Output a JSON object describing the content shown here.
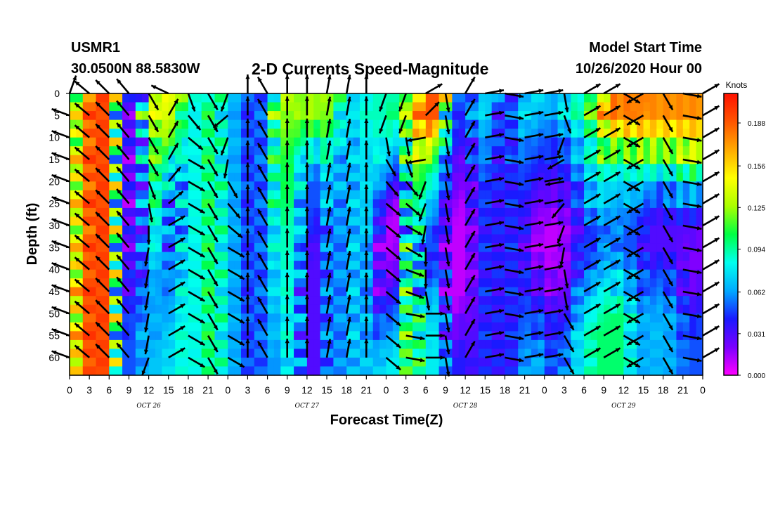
{
  "header": {
    "station": "USMR1",
    "coords": "30.0500N 88.5830W",
    "title": "2-D Currents Speed-Magnitude",
    "model_start_label": "Model Start Time",
    "model_start_value": "10/26/2020 Hour 00"
  },
  "colorbar": {
    "title": "Knots",
    "ticks": [
      "0.188",
      "0.156",
      "0.125",
      "0.094",
      "0.062",
      "0.031",
      "0.000"
    ]
  },
  "chart_data": {
    "type": "heatmap",
    "title": "2-D Currents Speed-Magnitude",
    "xlabel": "Forecast Time(Z)",
    "ylabel": "Depth (ft)",
    "x_tick_labels": [
      "0",
      "3",
      "6",
      "9",
      "12",
      "15",
      "18",
      "21",
      "0",
      "3",
      "6",
      "9",
      "12",
      "15",
      "18",
      "21",
      "0",
      "3",
      "6",
      "9",
      "12",
      "15",
      "18",
      "21",
      "0",
      "3",
      "6",
      "9",
      "12",
      "15",
      "18",
      "21",
      "0"
    ],
    "x_range_hours": [
      0,
      96
    ],
    "day_labels": [
      "OCT 26",
      "OCT 27",
      "OCT 28",
      "OCT 29"
    ],
    "y_tick_labels": [
      "0",
      "5",
      "10",
      "15",
      "20",
      "25",
      "30",
      "35",
      "40",
      "45",
      "50",
      "55",
      "60"
    ],
    "ylim": [
      0,
      64
    ],
    "y_inverted": true,
    "color_scale_units": "Knots",
    "color_range": [
      0.0,
      0.21
    ],
    "colormap": [
      "#ff00ff",
      "#7a00ff",
      "#1a1aff",
      "#00aaff",
      "#00ffee",
      "#00ff44",
      "#aaff00",
      "#ffff00",
      "#ffaa00",
      "#ff5500",
      "#ff1100"
    ],
    "time_hours": [
      0,
      2,
      4,
      6,
      8,
      10,
      12,
      14,
      16,
      18,
      20,
      22,
      24,
      26,
      28,
      30,
      32,
      34,
      36,
      38,
      40,
      42,
      44,
      46,
      48,
      50,
      52,
      54,
      56,
      58,
      60,
      62,
      64,
      66,
      68,
      70,
      72,
      74,
      76,
      78,
      80,
      82,
      84,
      86,
      88,
      90,
      92,
      94,
      96
    ],
    "depth_ft": [
      0,
      5,
      10,
      15,
      20,
      25,
      30,
      35,
      40,
      45,
      50,
      55,
      60,
      64
    ],
    "speed_knots": [
      [
        0.09,
        0.09,
        0.09,
        0.09,
        0.1,
        0.1,
        0.1,
        0.1,
        0.1,
        0.1,
        0.1,
        0.1,
        0.11,
        0.11
      ],
      [
        0.16,
        0.16,
        0.17,
        0.17,
        0.17,
        0.17,
        0.17,
        0.17,
        0.18,
        0.18,
        0.18,
        0.18,
        0.18,
        0.18
      ],
      [
        0.2,
        0.2,
        0.2,
        0.2,
        0.2,
        0.2,
        0.2,
        0.2,
        0.2,
        0.2,
        0.2,
        0.2,
        0.2,
        0.2
      ],
      [
        0.19,
        0.19,
        0.19,
        0.19,
        0.19,
        0.19,
        0.19,
        0.19,
        0.19,
        0.19,
        0.19,
        0.19,
        0.19,
        0.19
      ],
      [
        0.05,
        0.05,
        0.05,
        0.05,
        0.05,
        0.05,
        0.05,
        0.05,
        0.05,
        0.05,
        0.05,
        0.05,
        0.05,
        0.05
      ],
      [
        0.02,
        0.01,
        0.01,
        0.01,
        0.01,
        0.01,
        0.01,
        0.02,
        0.02,
        0.03,
        0.04,
        0.05,
        0.05,
        0.05
      ],
      [
        0.13,
        0.12,
        0.1,
        0.09,
        0.08,
        0.08,
        0.07,
        0.07,
        0.06,
        0.06,
        0.07,
        0.07,
        0.07,
        0.07
      ],
      [
        0.15,
        0.14,
        0.13,
        0.12,
        0.11,
        0.1,
        0.09,
        0.08,
        0.07,
        0.06,
        0.06,
        0.06,
        0.07,
        0.07
      ],
      [
        0.14,
        0.13,
        0.11,
        0.06,
        0.04,
        0.03,
        0.03,
        0.04,
        0.05,
        0.06,
        0.07,
        0.08,
        0.08,
        0.08
      ],
      [
        0.09,
        0.09,
        0.09,
        0.09,
        0.09,
        0.09,
        0.09,
        0.09,
        0.09,
        0.09,
        0.09,
        0.09,
        0.09,
        0.09
      ],
      [
        0.08,
        0.08,
        0.08,
        0.08,
        0.08,
        0.08,
        0.08,
        0.08,
        0.08,
        0.08,
        0.08,
        0.08,
        0.08,
        0.08
      ],
      [
        0.11,
        0.11,
        0.11,
        0.11,
        0.11,
        0.11,
        0.11,
        0.11,
        0.11,
        0.11,
        0.11,
        0.11,
        0.11,
        0.11
      ],
      [
        0.07,
        0.07,
        0.07,
        0.07,
        0.07,
        0.07,
        0.07,
        0.07,
        0.07,
        0.07,
        0.07,
        0.07,
        0.07,
        0.07
      ],
      [
        0.06,
        0.06,
        0.06,
        0.06,
        0.06,
        0.06,
        0.06,
        0.06,
        0.06,
        0.06,
        0.06,
        0.06,
        0.06,
        0.06
      ],
      [
        0.04,
        0.04,
        0.04,
        0.04,
        0.04,
        0.04,
        0.04,
        0.04,
        0.04,
        0.04,
        0.04,
        0.04,
        0.04,
        0.04
      ],
      [
        0.06,
        0.06,
        0.06,
        0.06,
        0.06,
        0.06,
        0.06,
        0.06,
        0.06,
        0.06,
        0.06,
        0.06,
        0.06,
        0.06
      ],
      [
        0.14,
        0.13,
        0.12,
        0.11,
        0.11,
        0.1,
        0.09,
        0.09,
        0.08,
        0.08,
        0.07,
        0.07,
        0.06,
        0.06
      ],
      [
        0.12,
        0.12,
        0.11,
        0.1,
        0.1,
        0.1,
        0.09,
        0.09,
        0.09,
        0.09,
        0.09,
        0.09,
        0.09,
        0.09
      ],
      [
        0.13,
        0.12,
        0.09,
        0.06,
        0.05,
        0.05,
        0.05,
        0.04,
        0.03,
        0.03,
        0.03,
        0.03,
        0.03,
        0.03
      ],
      [
        0.13,
        0.12,
        0.1,
        0.07,
        0.05,
        0.05,
        0.03,
        0.03,
        0.03,
        0.03,
        0.03,
        0.03,
        0.03,
        0.03
      ],
      [
        0.12,
        0.12,
        0.1,
        0.09,
        0.08,
        0.08,
        0.07,
        0.07,
        0.07,
        0.07,
        0.07,
        0.07,
        0.07,
        0.07
      ],
      [
        0.07,
        0.07,
        0.06,
        0.05,
        0.05,
        0.05,
        0.05,
        0.05,
        0.05,
        0.05,
        0.05,
        0.05,
        0.05,
        0.05
      ],
      [
        0.08,
        0.08,
        0.08,
        0.08,
        0.08,
        0.08,
        0.08,
        0.08,
        0.08,
        0.08,
        0.08,
        0.08,
        0.08,
        0.08
      ],
      [
        0.09,
        0.09,
        0.08,
        0.07,
        0.07,
        0.07,
        0.06,
        0.05,
        0.05,
        0.05,
        0.05,
        0.06,
        0.06,
        0.06
      ],
      [
        0.09,
        0.09,
        0.09,
        0.08,
        0.05,
        0.03,
        0.01,
        0.01,
        0.01,
        0.02,
        0.04,
        0.06,
        0.08,
        0.08
      ],
      [
        0.1,
        0.1,
        0.07,
        0.05,
        0.03,
        0.01,
        0.01,
        0.02,
        0.03,
        0.05,
        0.06,
        0.07,
        0.08,
        0.08
      ],
      [
        0.14,
        0.14,
        0.13,
        0.12,
        0.11,
        0.11,
        0.12,
        0.13,
        0.13,
        0.13,
        0.13,
        0.13,
        0.13,
        0.13
      ],
      [
        0.19,
        0.19,
        0.16,
        0.12,
        0.1,
        0.08,
        0.06,
        0.03,
        0.03,
        0.05,
        0.07,
        0.07,
        0.08,
        0.08
      ],
      [
        0.19,
        0.19,
        0.14,
        0.09,
        0.07,
        0.06,
        0.05,
        0.05,
        0.06,
        0.07,
        0.08,
        0.08,
        0.08,
        0.08
      ],
      [
        0.06,
        0.06,
        0.05,
        0.04,
        0.03,
        0.02,
        0.01,
        0.01,
        0.01,
        0.01,
        0.02,
        0.03,
        0.04,
        0.04
      ],
      [
        0.04,
        0.04,
        0.03,
        0.02,
        0.02,
        0.01,
        0.01,
        0.01,
        0.01,
        0.01,
        0.02,
        0.03,
        0.04,
        0.04
      ],
      [
        0.07,
        0.07,
        0.06,
        0.05,
        0.04,
        0.04,
        0.03,
        0.03,
        0.03,
        0.03,
        0.03,
        0.03,
        0.03,
        0.03
      ],
      [
        0.08,
        0.07,
        0.06,
        0.06,
        0.05,
        0.05,
        0.05,
        0.05,
        0.05,
        0.05,
        0.05,
        0.05,
        0.05,
        0.05
      ],
      [
        0.03,
        0.03,
        0.03,
        0.03,
        0.03,
        0.03,
        0.03,
        0.03,
        0.03,
        0.03,
        0.03,
        0.03,
        0.03,
        0.03
      ],
      [
        0.06,
        0.06,
        0.06,
        0.05,
        0.05,
        0.05,
        0.05,
        0.05,
        0.05,
        0.05,
        0.05,
        0.05,
        0.05,
        0.05
      ],
      [
        0.08,
        0.08,
        0.06,
        0.05,
        0.04,
        0.03,
        0.02,
        0.02,
        0.03,
        0.04,
        0.05,
        0.06,
        0.07,
        0.07
      ],
      [
        0.07,
        0.06,
        0.05,
        0.04,
        0.03,
        0.02,
        0.01,
        0.01,
        0.02,
        0.03,
        0.04,
        0.05,
        0.06,
        0.06
      ],
      [
        0.07,
        0.06,
        0.05,
        0.04,
        0.03,
        0.02,
        0.01,
        0.01,
        0.01,
        0.02,
        0.03,
        0.04,
        0.04,
        0.04
      ],
      [
        0.09,
        0.08,
        0.06,
        0.05,
        0.04,
        0.03,
        0.02,
        0.02,
        0.02,
        0.03,
        0.04,
        0.06,
        0.07,
        0.07
      ],
      [
        0.1,
        0.09,
        0.08,
        0.07,
        0.06,
        0.05,
        0.04,
        0.05,
        0.06,
        0.07,
        0.08,
        0.08,
        0.08,
        0.08
      ],
      [
        0.13,
        0.12,
        0.1,
        0.09,
        0.08,
        0.07,
        0.05,
        0.04,
        0.05,
        0.07,
        0.09,
        0.1,
        0.1,
        0.1
      ],
      [
        0.19,
        0.17,
        0.14,
        0.1,
        0.08,
        0.07,
        0.06,
        0.07,
        0.08,
        0.09,
        0.1,
        0.1,
        0.1,
        0.1
      ],
      [
        0.19,
        0.17,
        0.13,
        0.09,
        0.07,
        0.06,
        0.05,
        0.05,
        0.06,
        0.08,
        0.1,
        0.1,
        0.1,
        0.1
      ],
      [
        0.18,
        0.18,
        0.14,
        0.1,
        0.08,
        0.06,
        0.05,
        0.05,
        0.06,
        0.06,
        0.07,
        0.07,
        0.07,
        0.07
      ],
      [
        0.18,
        0.17,
        0.15,
        0.1,
        0.07,
        0.04,
        0.03,
        0.03,
        0.04,
        0.05,
        0.06,
        0.06,
        0.06,
        0.06
      ],
      [
        0.18,
        0.17,
        0.14,
        0.1,
        0.06,
        0.04,
        0.03,
        0.03,
        0.05,
        0.06,
        0.07,
        0.07,
        0.07,
        0.07
      ],
      [
        0.18,
        0.17,
        0.14,
        0.1,
        0.07,
        0.05,
        0.03,
        0.03,
        0.04,
        0.05,
        0.06,
        0.06,
        0.06,
        0.06
      ],
      [
        0.18,
        0.17,
        0.15,
        0.12,
        0.08,
        0.05,
        0.03,
        0.02,
        0.02,
        0.03,
        0.04,
        0.05,
        0.05,
        0.05
      ],
      [
        0.18,
        0.17,
        0.15,
        0.12,
        0.08,
        0.05,
        0.03,
        0.02,
        0.02,
        0.03,
        0.04,
        0.05,
        0.05,
        0.05
      ]
    ],
    "vector_time_hours": [
      0,
      3,
      6,
      9,
      12,
      15,
      18,
      21,
      24,
      27,
      30,
      33,
      36,
      39,
      42,
      45,
      48,
      51,
      54,
      57,
      60,
      63,
      66,
      69,
      72,
      75,
      78,
      81,
      84,
      87,
      90,
      93,
      96
    ],
    "vector_depth_ft": [
      0,
      5,
      10,
      15,
      20,
      25,
      30,
      35,
      40,
      45,
      50,
      55,
      60
    ],
    "vector_direction_deg": [
      [
        20,
        290,
        290,
        290,
        290,
        290,
        290,
        290,
        290,
        290,
        290,
        290,
        290
      ],
      [
        310,
        310,
        310,
        310,
        310,
        310,
        310,
        310,
        310,
        310,
        310,
        310,
        310
      ],
      [
        315,
        315,
        315,
        315,
        315,
        315,
        315,
        315,
        315,
        315,
        315,
        315,
        315
      ],
      [
        320,
        320,
        320,
        320,
        320,
        320,
        320,
        320,
        320,
        320,
        320,
        320,
        320
      ],
      [
        150,
        150,
        150,
        150,
        160,
        170,
        180,
        190,
        190,
        190,
        190,
        190,
        200
      ],
      [
        295,
        30,
        30,
        30,
        40,
        50,
        60,
        60,
        60,
        60,
        60,
        60,
        60
      ],
      [
        160,
        140,
        130,
        120,
        120,
        120,
        120,
        120,
        120,
        120,
        120,
        120,
        120
      ],
      [
        150,
        150,
        150,
        150,
        150,
        150,
        150,
        150,
        150,
        150,
        150,
        150,
        150
      ],
      [
        200,
        230,
        200,
        190,
        150,
        140,
        130,
        120,
        120,
        120,
        120,
        120,
        120
      ],
      [
        0,
        0,
        0,
        0,
        0,
        0,
        0,
        0,
        0,
        0,
        0,
        0,
        0
      ],
      [
        330,
        330,
        330,
        330,
        330,
        330,
        330,
        330,
        330,
        330,
        330,
        330,
        330
      ],
      [
        0,
        0,
        0,
        0,
        0,
        0,
        0,
        0,
        0,
        0,
        0,
        0,
        0
      ],
      [
        0,
        0,
        0,
        0,
        0,
        0,
        0,
        0,
        0,
        0,
        0,
        0,
        0
      ],
      [
        10,
        10,
        10,
        10,
        10,
        10,
        10,
        10,
        10,
        10,
        10,
        10,
        10
      ],
      [
        10,
        10,
        10,
        10,
        10,
        10,
        10,
        10,
        10,
        10,
        10,
        10,
        10
      ],
      [
        0,
        0,
        0,
        0,
        0,
        0,
        0,
        0,
        0,
        0,
        0,
        0,
        0
      ],
      [
        200,
        200,
        170,
        150,
        140,
        130,
        130,
        130,
        130,
        130,
        130,
        130,
        130
      ],
      [
        200,
        200,
        170,
        160,
        140,
        130,
        120,
        120,
        110,
        110,
        100,
        100,
        100
      ],
      [
        60,
        45,
        260,
        260,
        200,
        200,
        190,
        180,
        180,
        170,
        90,
        90,
        90
      ],
      [
        170,
        170,
        170,
        170,
        170,
        170,
        170,
        170,
        170,
        170,
        170,
        170,
        170
      ],
      [
        30,
        30,
        30,
        30,
        30,
        30,
        30,
        30,
        30,
        30,
        30,
        30,
        30
      ],
      [
        80,
        80,
        80,
        80,
        80,
        80,
        80,
        80,
        80,
        80,
        80,
        80,
        80
      ],
      [
        100,
        100,
        100,
        100,
        100,
        100,
        100,
        100,
        100,
        100,
        100,
        100,
        100
      ],
      [
        80,
        80,
        80,
        80,
        80,
        80,
        80,
        80,
        80,
        80,
        80,
        80,
        80
      ],
      [
        80,
        80,
        80,
        80,
        80,
        80,
        80,
        80,
        80,
        80,
        80,
        80,
        80
      ],
      [
        170,
        160,
        200,
        240,
        260,
        220,
        200,
        190,
        170,
        170,
        150,
        150,
        150
      ],
      [
        60,
        60,
        60,
        60,
        60,
        60,
        60,
        60,
        60,
        60,
        60,
        60,
        60
      ],
      [
        60,
        60,
        60,
        60,
        60,
        60,
        60,
        60,
        60,
        60,
        60,
        60,
        60
      ],
      [
        120,
        120,
        120,
        120,
        120,
        120,
        120,
        120,
        120,
        120,
        120,
        120,
        120
      ],
      [
        240,
        240,
        240,
        240,
        240,
        240,
        240,
        240,
        240,
        240,
        240,
        240,
        240
      ],
      [
        150,
        150,
        150,
        150,
        150,
        150,
        150,
        150,
        150,
        150,
        150,
        150,
        150
      ],
      [
        100,
        100,
        100,
        100,
        100,
        100,
        100,
        100,
        100,
        100,
        100,
        100,
        100
      ],
      [
        60,
        60,
        60,
        60,
        60,
        60,
        60,
        60,
        60,
        60,
        60,
        60,
        60
      ]
    ],
    "colorbar_ticks": [
      "0.188",
      "0.156",
      "0.125",
      "0.094",
      "0.062",
      "0.031",
      "0.000"
    ],
    "colorbar_units": "Knots"
  }
}
